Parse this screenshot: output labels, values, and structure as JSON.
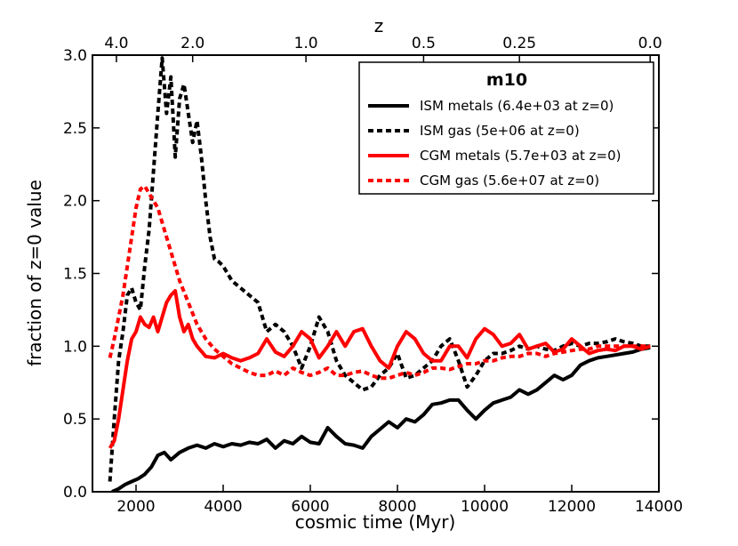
{
  "chart_data": {
    "type": "line",
    "title": "",
    "xlabel": "cosmic time (Myr)",
    "ylabel": "fraction of z=0 value",
    "top_axis_label": "z",
    "xlim": [
      1000,
      14000
    ],
    "ylim": [
      0.0,
      3.0
    ],
    "x_ticks": [
      2000,
      4000,
      6000,
      8000,
      10000,
      12000,
      14000
    ],
    "x_tick_labels": [
      "2000",
      "4000",
      "6000",
      "8000",
      "10000",
      "12000",
      "14000"
    ],
    "y_ticks": [
      0.0,
      0.5,
      1.0,
      1.5,
      2.0,
      2.5,
      3.0
    ],
    "y_tick_labels": [
      "0.0",
      "0.5",
      "1.0",
      "1.5",
      "2.0",
      "2.5",
      "3.0"
    ],
    "top_ticks": [
      {
        "label": "4.0",
        "time": 1550
      },
      {
        "label": "2.0",
        "time": 3300
      },
      {
        "label": "1.0",
        "time": 5900
      },
      {
        "label": "0.5",
        "time": 8600
      },
      {
        "label": "0.25",
        "time": 10800
      },
      {
        "label": "0.0",
        "time": 13800
      }
    ],
    "grid": false,
    "legend": {
      "title": "m10",
      "placement": "top-right"
    },
    "series": [
      {
        "name": "ISM metals (6.4e+03 at z=0)",
        "color": "#000000",
        "style": "solid",
        "x": [
          1450,
          1600,
          1750,
          1900,
          2050,
          2200,
          2350,
          2500,
          2650,
          2800,
          3000,
          3200,
          3400,
          3600,
          3800,
          4000,
          4200,
          4400,
          4600,
          4800,
          5000,
          5200,
          5400,
          5600,
          5800,
          6000,
          6200,
          6400,
          6600,
          6800,
          7000,
          7200,
          7400,
          7600,
          7800,
          8000,
          8200,
          8400,
          8600,
          8800,
          9000,
          9200,
          9400,
          9600,
          9800,
          10000,
          10200,
          10400,
          10600,
          10800,
          11000,
          11200,
          11400,
          11600,
          11800,
          12000,
          12200,
          12400,
          12600,
          12800,
          13000,
          13200,
          13400,
          13600,
          13800
        ],
        "values": [
          0.0,
          0.02,
          0.05,
          0.07,
          0.09,
          0.12,
          0.17,
          0.25,
          0.27,
          0.22,
          0.27,
          0.3,
          0.32,
          0.3,
          0.33,
          0.31,
          0.33,
          0.32,
          0.34,
          0.33,
          0.36,
          0.3,
          0.35,
          0.33,
          0.38,
          0.34,
          0.33,
          0.44,
          0.38,
          0.33,
          0.32,
          0.3,
          0.38,
          0.43,
          0.48,
          0.44,
          0.5,
          0.48,
          0.53,
          0.6,
          0.61,
          0.63,
          0.63,
          0.56,
          0.5,
          0.56,
          0.61,
          0.63,
          0.65,
          0.7,
          0.67,
          0.7,
          0.75,
          0.8,
          0.77,
          0.8,
          0.87,
          0.9,
          0.92,
          0.93,
          0.94,
          0.95,
          0.96,
          0.98,
          0.99
        ]
      },
      {
        "name": "ISM gas (5e+06 at z=0)",
        "color": "#000000",
        "style": "dashed",
        "x": [
          1400,
          1500,
          1600,
          1700,
          1800,
          1900,
          2000,
          2100,
          2200,
          2300,
          2400,
          2500,
          2600,
          2700,
          2800,
          2900,
          3000,
          3100,
          3200,
          3300,
          3400,
          3500,
          3600,
          3700,
          3800,
          3900,
          4000,
          4200,
          4400,
          4600,
          4800,
          5000,
          5200,
          5400,
          5600,
          5800,
          6000,
          6200,
          6400,
          6600,
          6800,
          7000,
          7200,
          7400,
          7600,
          7800,
          8000,
          8200,
          8400,
          8600,
          8800,
          9000,
          9200,
          9400,
          9600,
          9800,
          10000,
          10200,
          10400,
          10600,
          10800,
          11000,
          11200,
          11400,
          11600,
          11800,
          12000,
          12200,
          12400,
          12600,
          12800,
          13000,
          13200,
          13400,
          13600,
          13800
        ],
        "values": [
          0.07,
          0.5,
          0.9,
          1.1,
          1.35,
          1.4,
          1.3,
          1.25,
          1.55,
          1.8,
          2.2,
          2.6,
          2.98,
          2.6,
          2.85,
          2.3,
          2.7,
          2.8,
          2.6,
          2.4,
          2.55,
          2.3,
          2.0,
          1.75,
          1.6,
          1.58,
          1.55,
          1.45,
          1.4,
          1.35,
          1.3,
          1.1,
          1.15,
          1.1,
          1.0,
          0.85,
          1.0,
          1.2,
          1.1,
          0.9,
          0.8,
          0.75,
          0.7,
          0.72,
          0.8,
          0.85,
          0.95,
          0.78,
          0.8,
          0.85,
          0.9,
          1.0,
          1.05,
          0.9,
          0.72,
          0.8,
          0.9,
          0.95,
          0.95,
          0.97,
          1.0,
          0.98,
          1.0,
          0.98,
          0.97,
          1.0,
          1.02,
          1.0,
          1.02,
          1.02,
          1.03,
          1.05,
          1.03,
          1.02,
          1.0,
          1.0
        ]
      },
      {
        "name": "CGM metals (5.7e+03 at z=0)",
        "color": "#ff0000",
        "style": "solid",
        "x": [
          1400,
          1500,
          1600,
          1700,
          1800,
          1900,
          2000,
          2100,
          2200,
          2300,
          2400,
          2500,
          2600,
          2700,
          2800,
          2900,
          3000,
          3100,
          3200,
          3300,
          3400,
          3600,
          3800,
          4000,
          4200,
          4400,
          4600,
          4800,
          5000,
          5200,
          5400,
          5600,
          5800,
          6000,
          6200,
          6400,
          6600,
          6800,
          7000,
          7200,
          7400,
          7600,
          7800,
          8000,
          8200,
          8400,
          8600,
          8800,
          9000,
          9200,
          9400,
          9600,
          9800,
          10000,
          10200,
          10400,
          10600,
          10800,
          11000,
          11200,
          11400,
          11600,
          11800,
          12000,
          12200,
          12400,
          12600,
          12800,
          13000,
          13200,
          13400,
          13600,
          13800
        ],
        "values": [
          0.3,
          0.35,
          0.5,
          0.7,
          0.9,
          1.05,
          1.1,
          1.2,
          1.15,
          1.13,
          1.2,
          1.1,
          1.2,
          1.3,
          1.35,
          1.38,
          1.2,
          1.1,
          1.15,
          1.05,
          1.0,
          0.93,
          0.92,
          0.95,
          0.92,
          0.9,
          0.92,
          0.95,
          1.05,
          0.96,
          0.93,
          1.0,
          1.1,
          1.05,
          0.92,
          1.0,
          1.1,
          1.0,
          1.1,
          1.12,
          1.0,
          0.9,
          0.85,
          1.0,
          1.1,
          1.05,
          0.95,
          0.9,
          0.9,
          1.0,
          1.0,
          0.92,
          1.05,
          1.12,
          1.08,
          1.0,
          1.02,
          1.08,
          0.98,
          1.0,
          1.02,
          0.96,
          0.98,
          1.05,
          1.0,
          0.95,
          0.97,
          0.98,
          0.97,
          1.0,
          1.0,
          0.98,
          1.0
        ]
      },
      {
        "name": "CGM gas (5.6e+07 at z=0)",
        "color": "#ff0000",
        "style": "dashed",
        "x": [
          1400,
          1500,
          1600,
          1700,
          1800,
          1900,
          2000,
          2100,
          2200,
          2300,
          2400,
          2500,
          2600,
          2700,
          2800,
          2900,
          3000,
          3200,
          3400,
          3600,
          3800,
          4000,
          4200,
          4400,
          4600,
          4800,
          5000,
          5200,
          5400,
          5600,
          5800,
          6000,
          6200,
          6400,
          6600,
          6800,
          7000,
          7200,
          7400,
          7600,
          7800,
          8000,
          8200,
          8400,
          8600,
          8800,
          9000,
          9200,
          9400,
          9600,
          9800,
          10000,
          10200,
          10400,
          10600,
          10800,
          11000,
          11200,
          11400,
          11600,
          11800,
          12000,
          12200,
          12400,
          12600,
          12800,
          13000,
          13200,
          13400,
          13600,
          13800
        ],
        "values": [
          0.92,
          1.05,
          1.2,
          1.35,
          1.55,
          1.75,
          1.95,
          2.08,
          2.1,
          2.05,
          2.0,
          1.95,
          1.85,
          1.75,
          1.65,
          1.55,
          1.45,
          1.3,
          1.15,
          1.05,
          0.98,
          0.93,
          0.88,
          0.85,
          0.82,
          0.8,
          0.8,
          0.83,
          0.8,
          0.85,
          0.82,
          0.8,
          0.82,
          0.85,
          0.8,
          0.8,
          0.82,
          0.83,
          0.8,
          0.78,
          0.78,
          0.8,
          0.82,
          0.8,
          0.82,
          0.85,
          0.85,
          0.84,
          0.86,
          0.88,
          0.88,
          0.9,
          0.9,
          0.92,
          0.93,
          0.93,
          0.95,
          0.95,
          0.93,
          0.95,
          0.96,
          0.97,
          0.98,
          0.98,
          1.0,
          1.0,
          1.0,
          1.0,
          1.0,
          1.0,
          1.0
        ]
      }
    ]
  }
}
